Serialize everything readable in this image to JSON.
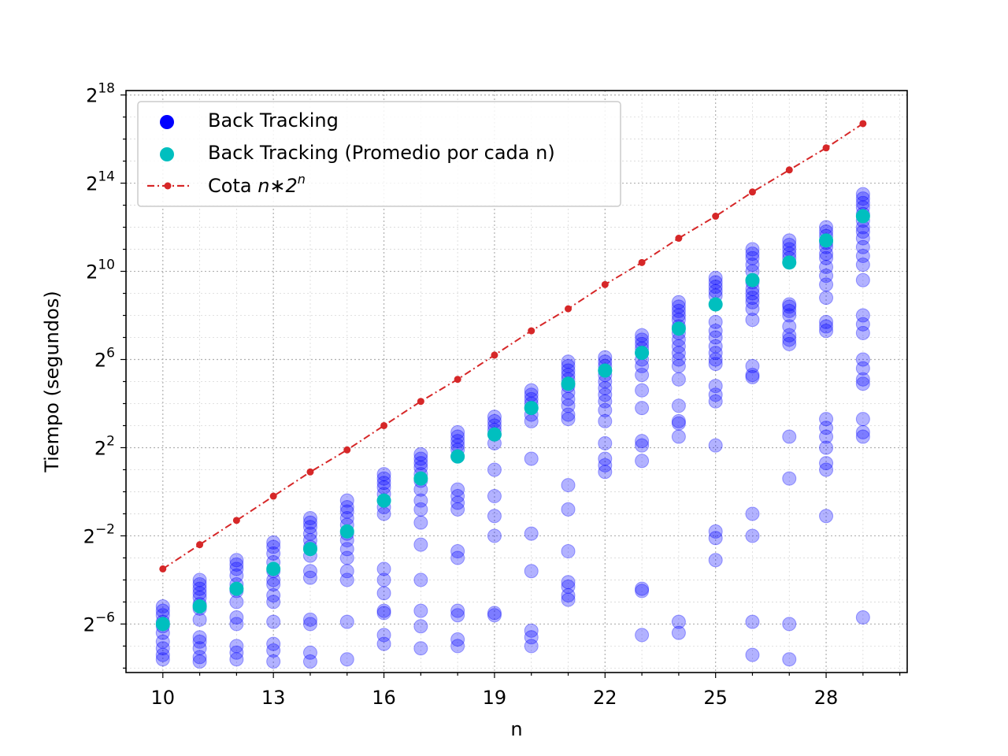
{
  "chart_data": {
    "type": "scatter",
    "title": "",
    "xlabel": "n",
    "ylabel": "Tiempo (segundos)",
    "xlim": [
      9,
      30.2
    ],
    "ylim_log2": [
      -8.2,
      18.2
    ],
    "y_scale": "log2",
    "grid": true,
    "legend_position": "top-left",
    "x_ticks": [
      10,
      13,
      16,
      19,
      22,
      25,
      28
    ],
    "y_ticks": [
      {
        "exp": 18,
        "base": "2",
        "sup": "18"
      },
      {
        "exp": 14,
        "base": "2",
        "sup": "14"
      },
      {
        "exp": 10,
        "base": "2",
        "sup": "10"
      },
      {
        "exp": 6,
        "base": "2",
        "sup": "6"
      },
      {
        "exp": 2,
        "base": "2",
        "sup": "2"
      },
      {
        "exp": -2,
        "base": "2",
        "sup": "−2"
      },
      {
        "exp": -6,
        "base": "2",
        "sup": "−6"
      }
    ],
    "legend": [
      {
        "label": "Back Tracking",
        "color": "#0000ff",
        "marker": "circle"
      },
      {
        "label": "Back Tracking (Promedio por cada n)",
        "color": "#00bfbf",
        "marker": "circle"
      },
      {
        "label_prefix": "Cota ",
        "label_math": "n∗2",
        "label_sup": "n",
        "color": "#d62728",
        "marker": "line-dot"
      }
    ],
    "series": [
      {
        "name": "Back Tracking",
        "color": "#0000ff",
        "log2_values_by_n": [
          {
            "n": 10,
            "log2": [
              -5.2,
              -5.4,
              -5.6,
              -5.9,
              -6.1,
              -6.4,
              -6.8,
              -7.1,
              -7.4,
              -7.6
            ]
          },
          {
            "n": 11,
            "log2": [
              -4.0,
              -4.2,
              -4.4,
              -4.6,
              -4.8,
              -5.1,
              -5.3,
              -5.8,
              -6.6,
              -6.8,
              -7.1,
              -7.5,
              -7.7
            ]
          },
          {
            "n": 12,
            "log2": [
              -3.1,
              -3.3,
              -3.5,
              -3.8,
              -4.2,
              -4.5,
              -5.0,
              -5.7,
              -6.0,
              -7.0,
              -7.3,
              -7.6
            ]
          },
          {
            "n": 13,
            "log2": [
              -2.3,
              -2.5,
              -2.8,
              -3.2,
              -3.6,
              -4.0,
              -4.2,
              -4.7,
              -5.0,
              -5.9,
              -6.9,
              -7.2,
              -7.7
            ]
          },
          {
            "n": 14,
            "log2": [
              -1.2,
              -1.4,
              -1.6,
              -1.9,
              -2.2,
              -2.5,
              -2.9,
              -3.6,
              -3.9,
              -5.8,
              -6.0,
              -7.3,
              -7.7
            ]
          },
          {
            "n": 15,
            "log2": [
              -0.4,
              -0.7,
              -0.9,
              -1.2,
              -1.5,
              -1.9,
              -2.2,
              -2.6,
              -3.0,
              -3.6,
              -4.0,
              -5.9,
              -7.6
            ]
          },
          {
            "n": 16,
            "log2": [
              0.8,
              0.6,
              0.4,
              0.2,
              -0.1,
              -0.4,
              -0.7,
              -1.0,
              -3.5,
              -4.0,
              -4.6,
              -5.4,
              -5.5,
              -6.5,
              -6.9
            ]
          },
          {
            "n": 17,
            "log2": [
              1.7,
              1.5,
              1.3,
              1.1,
              0.8,
              0.5,
              0.1,
              -0.4,
              -0.8,
              -1.4,
              -2.4,
              -4.0,
              -5.4,
              -6.1,
              -7.1
            ]
          },
          {
            "n": 18,
            "log2": [
              2.7,
              2.5,
              2.3,
              2.1,
              1.9,
              1.6,
              0.1,
              -0.2,
              -0.5,
              -0.8,
              -2.7,
              -3.0,
              -5.4,
              -5.6,
              -6.7,
              -7.0
            ]
          },
          {
            "n": 19,
            "log2": [
              3.4,
              3.2,
              3.0,
              2.8,
              2.6,
              2.2,
              1.0,
              -0.2,
              -1.1,
              -2.0,
              -5.5,
              -5.6
            ]
          },
          {
            "n": 20,
            "log2": [
              4.6,
              4.4,
              4.2,
              4.0,
              3.8,
              3.5,
              3.2,
              1.5,
              -1.9,
              -3.6,
              -6.3,
              -6.6,
              -7.0
            ]
          },
          {
            "n": 21,
            "log2": [
              5.9,
              5.7,
              5.5,
              5.3,
              5.1,
              4.8,
              4.5,
              4.2,
              3.9,
              3.5,
              3.3,
              0.3,
              -0.8,
              -2.7,
              -4.1,
              -4.3,
              -4.7,
              -4.9
            ]
          },
          {
            "n": 22,
            "log2": [
              6.1,
              5.9,
              5.7,
              5.5,
              5.3,
              5.0,
              4.7,
              4.4,
              4.1,
              3.7,
              3.2,
              2.2,
              1.5,
              1.2,
              0.9
            ]
          },
          {
            "n": 23,
            "log2": [
              7.1,
              6.9,
              6.7,
              6.5,
              6.3,
              6.0,
              5.7,
              5.3,
              4.6,
              3.8,
              2.3,
              2.1,
              1.4,
              -4.4,
              -4.5,
              -6.5
            ]
          },
          {
            "n": 24,
            "log2": [
              8.6,
              8.4,
              8.2,
              8.0,
              7.8,
              7.5,
              7.2,
              6.9,
              6.6,
              6.3,
              6.0,
              5.7,
              5.1,
              3.9,
              3.2,
              3.1,
              2.5,
              -5.9,
              -6.4
            ]
          },
          {
            "n": 25,
            "log2": [
              9.7,
              9.5,
              9.3,
              9.1,
              8.9,
              7.7,
              7.3,
              7.0,
              6.6,
              6.3,
              6.0,
              5.8,
              4.8,
              4.4,
              4.1,
              2.1,
              -1.8,
              -2.1,
              -3.1
            ]
          },
          {
            "n": 26,
            "log2": [
              11.0,
              10.8,
              10.6,
              10.3,
              10.0,
              9.5,
              9.2,
              9.0,
              8.8,
              8.6,
              8.3,
              7.8,
              5.7,
              5.3,
              5.2,
              -1.0,
              -2.0,
              -5.9,
              -7.4
            ]
          },
          {
            "n": 27,
            "log2": [
              11.4,
              11.2,
              11.0,
              10.8,
              10.6,
              8.5,
              8.4,
              8.2,
              8.0,
              7.5,
              7.1,
              6.9,
              6.7,
              2.5,
              0.6,
              -6.0,
              -7.6
            ]
          },
          {
            "n": 28,
            "log2": [
              12.0,
              11.8,
              11.6,
              11.3,
              11.1,
              10.8,
              10.6,
              10.2,
              9.8,
              9.4,
              8.8,
              7.7,
              7.5,
              7.3,
              3.3,
              2.9,
              2.5,
              2.0,
              1.3,
              1.0,
              -1.1
            ]
          },
          {
            "n": 29,
            "log2": [
              13.5,
              13.3,
              13.1,
              12.9,
              12.6,
              12.3,
              12.0,
              11.8,
              11.5,
              11.1,
              10.7,
              10.3,
              9.6,
              8.0,
              7.6,
              7.2,
              6.0,
              5.6,
              5.1,
              4.9,
              3.3,
              2.7,
              2.5,
              -5.7
            ]
          }
        ]
      },
      {
        "name": "Back Tracking (Promedio por cada n)",
        "color": "#00bfbf",
        "x": [
          10,
          11,
          12,
          13,
          14,
          15,
          16,
          17,
          18,
          19,
          20,
          21,
          22,
          23,
          24,
          25,
          26,
          27,
          28,
          29
        ],
        "log2": [
          -6.0,
          -5.2,
          -4.4,
          -3.5,
          -2.6,
          -1.8,
          -0.4,
          0.6,
          1.6,
          2.6,
          3.8,
          4.9,
          5.5,
          6.3,
          7.4,
          8.5,
          9.6,
          10.4,
          11.4,
          12.5
        ]
      },
      {
        "name": "Cota n*2^n",
        "color": "#d62728",
        "x": [
          10,
          11,
          12,
          13,
          14,
          15,
          16,
          17,
          18,
          19,
          20,
          21,
          22,
          23,
          24,
          25,
          26,
          27,
          28,
          29
        ],
        "log2": [
          -3.5,
          -2.4,
          -1.3,
          -0.2,
          0.9,
          1.9,
          3.0,
          4.1,
          5.1,
          6.2,
          7.3,
          8.3,
          9.4,
          10.4,
          11.5,
          12.5,
          13.6,
          14.6,
          15.6,
          16.7
        ]
      }
    ]
  }
}
